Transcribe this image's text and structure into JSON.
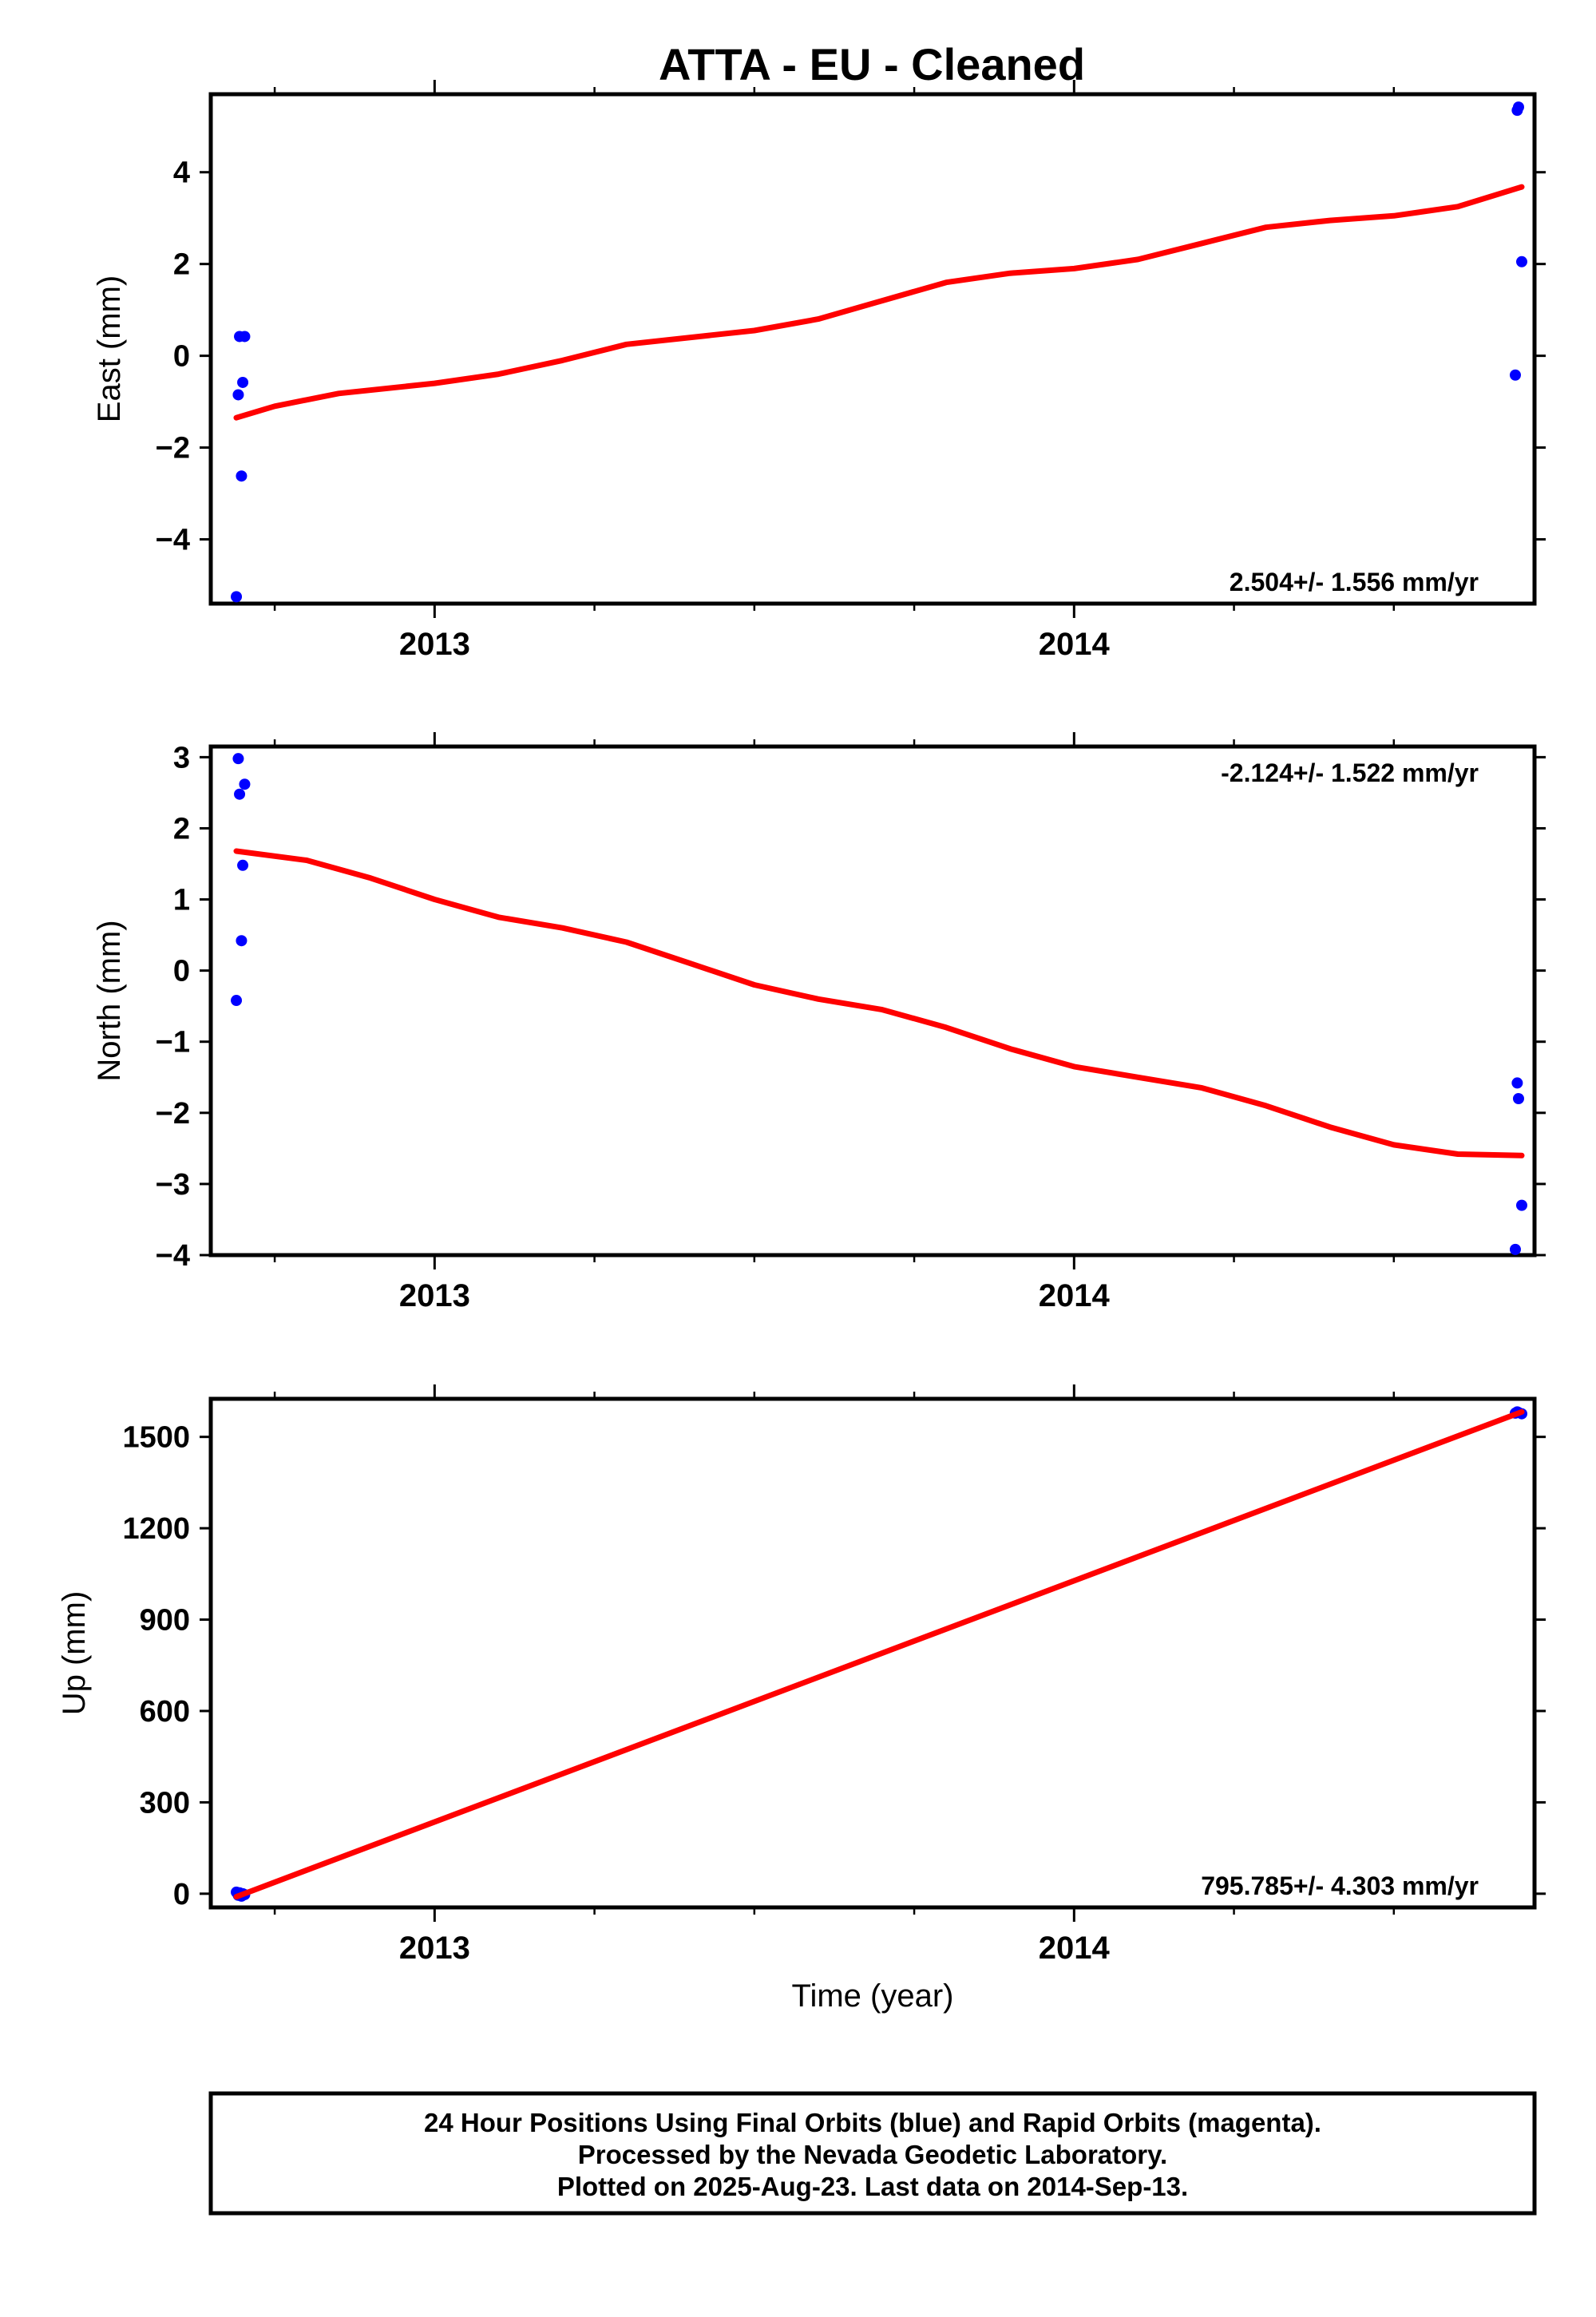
{
  "title": "ATTA  - EU - Cleaned",
  "colors": {
    "model": "#ff0000",
    "final_orbits": "#0000ff",
    "frame": "#000000"
  },
  "footer": {
    "lines": [
      "24 Hour Positions Using Final Orbits (blue) and Rapid Orbits (magenta).",
      "Processed by the Nevada Geodetic Laboratory.",
      "Plotted on 2025-Aug-23. Last data on 2014-Sep-13."
    ]
  },
  "chart_data": [
    {
      "type": "scatter",
      "ylabel": "East (mm)",
      "xlabel": "",
      "xlim": [
        2012.65,
        2014.72
      ],
      "ylim": [
        -5.4,
        5.7
      ],
      "xticks": [
        2013,
        2014
      ],
      "yticks": [
        -4,
        -2,
        0,
        2,
        4
      ],
      "ytick_labels": [
        "−4",
        "−2",
        "0",
        "2",
        "4"
      ],
      "rate": "2.504+/- 1.556 mm/yr",
      "rate_position": "bottom-right",
      "points": [
        [
          2012.69,
          -5.25
        ],
        [
          2012.693,
          -0.85
        ],
        [
          2012.695,
          0.42
        ],
        [
          2012.698,
          -2.62
        ],
        [
          2012.7,
          -0.58
        ],
        [
          2012.703,
          0.42
        ],
        [
          2014.69,
          -0.42
        ],
        [
          2014.693,
          5.35
        ],
        [
          2014.695,
          5.42
        ],
        [
          2014.7,
          2.05
        ]
      ],
      "model": [
        [
          2012.69,
          -1.35
        ],
        [
          2012.75,
          -1.1
        ],
        [
          2012.85,
          -0.82
        ],
        [
          2013.0,
          -0.6
        ],
        [
          2013.1,
          -0.4
        ],
        [
          2013.2,
          -0.1
        ],
        [
          2013.3,
          0.25
        ],
        [
          2013.5,
          0.55
        ],
        [
          2013.6,
          0.8
        ],
        [
          2013.7,
          1.2
        ],
        [
          2013.8,
          1.6
        ],
        [
          2013.9,
          1.8
        ],
        [
          2014.0,
          1.9
        ],
        [
          2014.1,
          2.1
        ],
        [
          2014.2,
          2.45
        ],
        [
          2014.3,
          2.8
        ],
        [
          2014.4,
          2.95
        ],
        [
          2014.5,
          3.05
        ],
        [
          2014.6,
          3.25
        ],
        [
          2014.7,
          3.68
        ]
      ]
    },
    {
      "type": "scatter",
      "ylabel": "North (mm)",
      "xlabel": "",
      "xlim": [
        2012.65,
        2014.72
      ],
      "ylim": [
        -4.0,
        3.15
      ],
      "xticks": [
        2013,
        2014
      ],
      "yticks": [
        -4,
        -3,
        -2,
        -1,
        0,
        1,
        2,
        3
      ],
      "ytick_labels": [
        "−4",
        "−3",
        "−2",
        "−1",
        "0",
        "1",
        "2",
        "3"
      ],
      "rate": "-2.124+/- 1.522 mm/yr",
      "rate_position": "top-right",
      "points": [
        [
          2012.69,
          -0.42
        ],
        [
          2012.693,
          2.98
        ],
        [
          2012.695,
          2.48
        ],
        [
          2012.698,
          0.42
        ],
        [
          2012.7,
          1.48
        ],
        [
          2012.703,
          2.62
        ],
        [
          2014.69,
          -3.92
        ],
        [
          2014.693,
          -1.58
        ],
        [
          2014.695,
          -1.8
        ],
        [
          2014.7,
          -3.3
        ]
      ],
      "model": [
        [
          2012.69,
          1.68
        ],
        [
          2012.8,
          1.55
        ],
        [
          2012.9,
          1.3
        ],
        [
          2013.0,
          1.0
        ],
        [
          2013.1,
          0.75
        ],
        [
          2013.2,
          0.6
        ],
        [
          2013.3,
          0.4
        ],
        [
          2013.4,
          0.1
        ],
        [
          2013.5,
          -0.2
        ],
        [
          2013.6,
          -0.4
        ],
        [
          2013.7,
          -0.55
        ],
        [
          2013.8,
          -0.8
        ],
        [
          2013.9,
          -1.1
        ],
        [
          2014.0,
          -1.35
        ],
        [
          2014.1,
          -1.5
        ],
        [
          2014.2,
          -1.65
        ],
        [
          2014.3,
          -1.9
        ],
        [
          2014.4,
          -2.2
        ],
        [
          2014.5,
          -2.45
        ],
        [
          2014.6,
          -2.58
        ],
        [
          2014.7,
          -2.6
        ]
      ]
    },
    {
      "type": "scatter",
      "ylabel": "Up (mm)",
      "xlabel": "Time (year)",
      "xlim": [
        2012.65,
        2014.72
      ],
      "ylim": [
        -45,
        1625
      ],
      "xticks": [
        2013,
        2014
      ],
      "yticks": [
        0,
        300,
        600,
        900,
        1200,
        1500
      ],
      "ytick_labels": [
        "0",
        "300",
        "600",
        "900",
        "1200",
        "1500"
      ],
      "rate": "795.785+/- 4.303 mm/yr",
      "rate_position": "bottom-right",
      "points": [
        [
          2012.69,
          5
        ],
        [
          2012.693,
          -5
        ],
        [
          2012.695,
          3
        ],
        [
          2012.698,
          -8
        ],
        [
          2012.7,
          0
        ],
        [
          2012.703,
          -3
        ],
        [
          2014.69,
          1578
        ],
        [
          2014.693,
          1582
        ],
        [
          2014.695,
          1580
        ],
        [
          2014.7,
          1576
        ]
      ],
      "model": [
        [
          2012.69,
          -10
        ],
        [
          2014.7,
          1582
        ]
      ]
    }
  ]
}
